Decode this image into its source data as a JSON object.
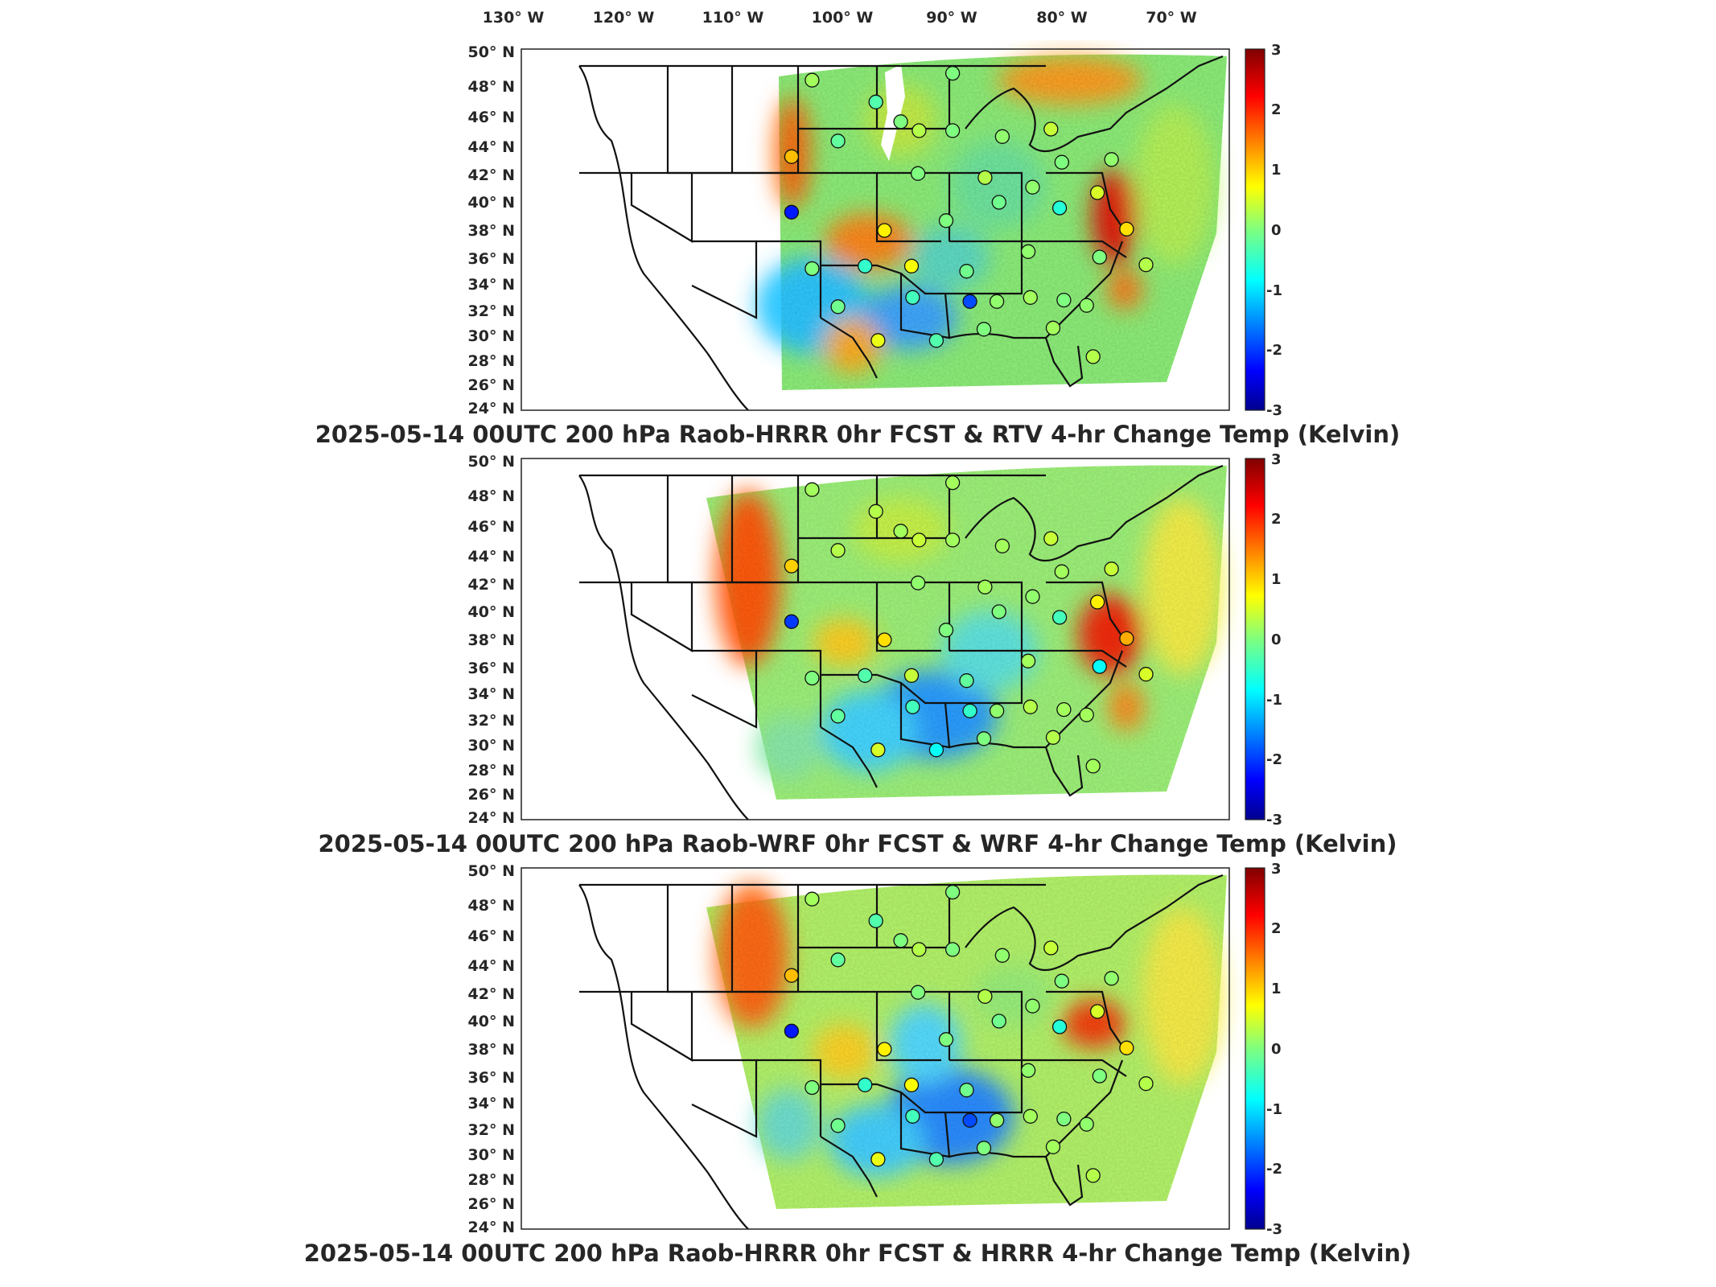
{
  "figure": {
    "longitude_labels": [
      "130° W",
      "120° W",
      "110° W",
      "100° W",
      "90° W",
      "80° W",
      "70° W"
    ],
    "latitude_labels": [
      "50° N",
      "48° N",
      "46° N",
      "44° N",
      "42° N",
      "40° N",
      "38° N",
      "36° N",
      "34° N",
      "32° N",
      "30° N",
      "28° N",
      "26° N",
      "24° N"
    ],
    "colorbar": {
      "ticks": [
        "3",
        "2",
        "1",
        "0",
        "-1",
        "-2",
        "-3"
      ],
      "range": [
        -3,
        3
      ],
      "colormap": "jet"
    },
    "panels": [
      {
        "title": "2025-05-14 00UTC 200 hPa Raob-HRRR 0hr FCST & RTV 4-hr Change Temp (Kelvin)",
        "raob_station_values": [
          {
            "lon": -106.6,
            "lat": 48.2,
            "value": 0.2
          },
          {
            "lon": -98.4,
            "lat": 45.5,
            "value": 0.0
          },
          {
            "lon": -100.7,
            "lat": 46.8,
            "value": -0.3
          },
          {
            "lon": -93.6,
            "lat": 48.6,
            "value": 0.0
          },
          {
            "lon": -108.5,
            "lat": 43.1,
            "value": 1.1
          },
          {
            "lon": -108.5,
            "lat": 39.1,
            "value": -2.2
          },
          {
            "lon": -104.2,
            "lat": 44.2,
            "value": -0.2
          },
          {
            "lon": -96.7,
            "lat": 44.9,
            "value": 0.3
          },
          {
            "lon": -93.6,
            "lat": 44.9,
            "value": 0.0
          },
          {
            "lon": -89.0,
            "lat": 44.5,
            "value": 0.1
          },
          {
            "lon": -84.5,
            "lat": 45.0,
            "value": 0.4
          },
          {
            "lon": -83.5,
            "lat": 42.7,
            "value": 0.0
          },
          {
            "lon": -78.9,
            "lat": 42.9,
            "value": 0.1
          },
          {
            "lon": -96.8,
            "lat": 41.9,
            "value": 0.0
          },
          {
            "lon": -90.6,
            "lat": 41.6,
            "value": 0.3
          },
          {
            "lon": -86.2,
            "lat": 40.9,
            "value": 0.1
          },
          {
            "lon": -80.2,
            "lat": 40.5,
            "value": 0.5
          },
          {
            "lon": -89.3,
            "lat": 39.8,
            "value": -0.1
          },
          {
            "lon": -99.9,
            "lat": 37.8,
            "value": 0.8
          },
          {
            "lon": -94.2,
            "lat": 38.5,
            "value": 0.0
          },
          {
            "lon": -83.7,
            "lat": 39.4,
            "value": -0.6
          },
          {
            "lon": -77.5,
            "lat": 37.9,
            "value": 0.9
          },
          {
            "lon": -86.6,
            "lat": 36.3,
            "value": 0.1
          },
          {
            "lon": -106.6,
            "lat": 35.0,
            "value": 0.0
          },
          {
            "lon": -101.7,
            "lat": 35.2,
            "value": -0.5
          },
          {
            "lon": -97.4,
            "lat": 35.2,
            "value": 0.7
          },
          {
            "lon": -92.3,
            "lat": 34.8,
            "value": -0.1
          },
          {
            "lon": -80.0,
            "lat": 35.9,
            "value": 0.0
          },
          {
            "lon": -75.7,
            "lat": 35.3,
            "value": 0.3
          },
          {
            "lon": -104.2,
            "lat": 32.1,
            "value": -0.1
          },
          {
            "lon": -97.3,
            "lat": 32.8,
            "value": -0.4
          },
          {
            "lon": -92.0,
            "lat": 32.5,
            "value": -1.9
          },
          {
            "lon": -89.5,
            "lat": 32.5,
            "value": 0.1
          },
          {
            "lon": -86.4,
            "lat": 32.8,
            "value": 0.2
          },
          {
            "lon": -83.3,
            "lat": 32.6,
            "value": 0.0
          },
          {
            "lon": -81.2,
            "lat": 32.2,
            "value": 0.1
          },
          {
            "lon": -100.5,
            "lat": 29.4,
            "value": 0.6
          },
          {
            "lon": -95.1,
            "lat": 29.4,
            "value": -0.3
          },
          {
            "lon": -90.7,
            "lat": 30.3,
            "value": 0.0
          },
          {
            "lon": -84.3,
            "lat": 30.4,
            "value": 0.2
          },
          {
            "lon": -80.6,
            "lat": 28.1,
            "value": 0.3
          }
        ]
      },
      {
        "title": "2025-05-14 00UTC 200 hPa Raob-WRF 0hr FCST & WRF 4-hr Change Temp (Kelvin)",
        "raob_station_values": [
          {
            "lon": -106.6,
            "lat": 48.2,
            "value": 0.2
          },
          {
            "lon": -98.4,
            "lat": 45.5,
            "value": 0.2
          },
          {
            "lon": -100.7,
            "lat": 46.8,
            "value": 0.3
          },
          {
            "lon": -93.6,
            "lat": 48.6,
            "value": 0.2
          },
          {
            "lon": -108.5,
            "lat": 43.1,
            "value": 1.0
          },
          {
            "lon": -108.5,
            "lat": 39.1,
            "value": -2.0
          },
          {
            "lon": -104.2,
            "lat": 44.2,
            "value": 0.3
          },
          {
            "lon": -96.7,
            "lat": 44.9,
            "value": 0.4
          },
          {
            "lon": -93.6,
            "lat": 44.9,
            "value": 0.2
          },
          {
            "lon": -89.0,
            "lat": 44.5,
            "value": 0.2
          },
          {
            "lon": -84.5,
            "lat": 45.0,
            "value": 0.4
          },
          {
            "lon": -83.5,
            "lat": 42.7,
            "value": 0.2
          },
          {
            "lon": -78.9,
            "lat": 42.9,
            "value": 0.4
          },
          {
            "lon": -96.8,
            "lat": 41.9,
            "value": 0.1
          },
          {
            "lon": -90.6,
            "lat": 41.6,
            "value": 0.2
          },
          {
            "lon": -86.2,
            "lat": 40.9,
            "value": 0.1
          },
          {
            "lon": -80.2,
            "lat": 40.5,
            "value": 0.8
          },
          {
            "lon": -89.3,
            "lat": 39.8,
            "value": 0.0
          },
          {
            "lon": -99.9,
            "lat": 37.8,
            "value": 0.9
          },
          {
            "lon": -94.2,
            "lat": 38.5,
            "value": 0.0
          },
          {
            "lon": -83.7,
            "lat": 39.4,
            "value": -0.4
          },
          {
            "lon": -77.5,
            "lat": 37.9,
            "value": 1.2
          },
          {
            "lon": -86.6,
            "lat": 36.3,
            "value": 0.2
          },
          {
            "lon": -106.6,
            "lat": 35.0,
            "value": 0.0
          },
          {
            "lon": -101.7,
            "lat": 35.2,
            "value": -0.3
          },
          {
            "lon": -97.4,
            "lat": 35.2,
            "value": 0.4
          },
          {
            "lon": -92.3,
            "lat": 34.8,
            "value": -0.2
          },
          {
            "lon": -80.0,
            "lat": 35.9,
            "value": -0.8
          },
          {
            "lon": -75.7,
            "lat": 35.3,
            "value": 0.5
          },
          {
            "lon": -104.2,
            "lat": 32.1,
            "value": -0.2
          },
          {
            "lon": -97.3,
            "lat": 32.8,
            "value": -0.4
          },
          {
            "lon": -92.0,
            "lat": 32.5,
            "value": -0.5
          },
          {
            "lon": -89.5,
            "lat": 32.5,
            "value": 0.1
          },
          {
            "lon": -86.4,
            "lat": 32.8,
            "value": 0.3
          },
          {
            "lon": -83.3,
            "lat": 32.6,
            "value": 0.2
          },
          {
            "lon": -81.2,
            "lat": 32.2,
            "value": 0.2
          },
          {
            "lon": -100.5,
            "lat": 29.4,
            "value": 0.5
          },
          {
            "lon": -95.1,
            "lat": 29.4,
            "value": -0.8
          },
          {
            "lon": -90.7,
            "lat": 30.3,
            "value": 0.0
          },
          {
            "lon": -84.3,
            "lat": 30.4,
            "value": 0.3
          },
          {
            "lon": -80.6,
            "lat": 28.1,
            "value": 0.2
          }
        ]
      },
      {
        "title": "2025-05-14 00UTC 200 hPa Raob-HRRR 0hr FCST & HRRR 4-hr Change Temp (Kelvin)",
        "raob_station_values": [
          {
            "lon": -106.6,
            "lat": 48.2,
            "value": 0.2
          },
          {
            "lon": -98.4,
            "lat": 45.5,
            "value": 0.0
          },
          {
            "lon": -100.7,
            "lat": 46.8,
            "value": -0.3
          },
          {
            "lon": -93.6,
            "lat": 48.6,
            "value": 0.0
          },
          {
            "lon": -108.5,
            "lat": 43.1,
            "value": 1.1
          },
          {
            "lon": -108.5,
            "lat": 39.1,
            "value": -2.2
          },
          {
            "lon": -104.2,
            "lat": 44.2,
            "value": -0.2
          },
          {
            "lon": -96.7,
            "lat": 44.9,
            "value": 0.3
          },
          {
            "lon": -93.6,
            "lat": 44.9,
            "value": 0.0
          },
          {
            "lon": -89.0,
            "lat": 44.5,
            "value": 0.1
          },
          {
            "lon": -84.5,
            "lat": 45.0,
            "value": 0.4
          },
          {
            "lon": -83.5,
            "lat": 42.7,
            "value": 0.0
          },
          {
            "lon": -78.9,
            "lat": 42.9,
            "value": 0.1
          },
          {
            "lon": -96.8,
            "lat": 41.9,
            "value": 0.0
          },
          {
            "lon": -90.6,
            "lat": 41.6,
            "value": 0.3
          },
          {
            "lon": -86.2,
            "lat": 40.9,
            "value": 0.1
          },
          {
            "lon": -80.2,
            "lat": 40.5,
            "value": 0.5
          },
          {
            "lon": -89.3,
            "lat": 39.8,
            "value": -0.1
          },
          {
            "lon": -99.9,
            "lat": 37.8,
            "value": 0.8
          },
          {
            "lon": -94.2,
            "lat": 38.5,
            "value": 0.0
          },
          {
            "lon": -83.7,
            "lat": 39.4,
            "value": -0.6
          },
          {
            "lon": -77.5,
            "lat": 37.9,
            "value": 0.9
          },
          {
            "lon": -86.6,
            "lat": 36.3,
            "value": 0.1
          },
          {
            "lon": -106.6,
            "lat": 35.0,
            "value": 0.0
          },
          {
            "lon": -101.7,
            "lat": 35.2,
            "value": -0.5
          },
          {
            "lon": -97.4,
            "lat": 35.2,
            "value": 0.7
          },
          {
            "lon": -92.3,
            "lat": 34.8,
            "value": -0.1
          },
          {
            "lon": -80.0,
            "lat": 35.9,
            "value": 0.0
          },
          {
            "lon": -75.7,
            "lat": 35.3,
            "value": 0.3
          },
          {
            "lon": -104.2,
            "lat": 32.1,
            "value": -0.1
          },
          {
            "lon": -97.3,
            "lat": 32.8,
            "value": -0.4
          },
          {
            "lon": -92.0,
            "lat": 32.5,
            "value": -1.9
          },
          {
            "lon": -89.5,
            "lat": 32.5,
            "value": 0.1
          },
          {
            "lon": -86.4,
            "lat": 32.8,
            "value": 0.2
          },
          {
            "lon": -83.3,
            "lat": 32.6,
            "value": 0.0
          },
          {
            "lon": -81.2,
            "lat": 32.2,
            "value": 0.1
          },
          {
            "lon": -100.5,
            "lat": 29.4,
            "value": 0.6
          },
          {
            "lon": -95.1,
            "lat": 29.4,
            "value": -0.3
          },
          {
            "lon": -90.7,
            "lat": 30.3,
            "value": 0.0
          },
          {
            "lon": -84.3,
            "lat": 30.4,
            "value": 0.2
          },
          {
            "lon": -80.6,
            "lat": 28.1,
            "value": 0.3
          }
        ]
      }
    ]
  }
}
